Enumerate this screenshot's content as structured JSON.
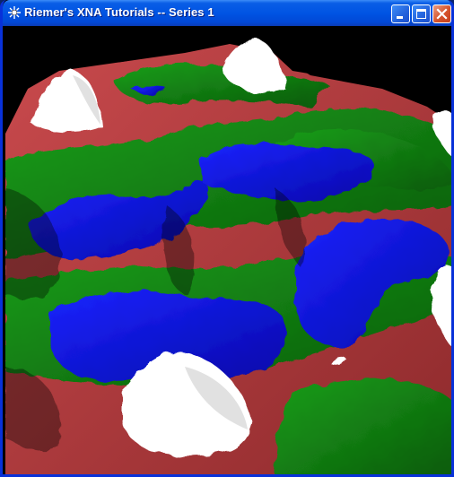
{
  "window": {
    "title": "Riemer's XNA Tutorials -- Series 1",
    "buttons": {
      "minimize": "minimize",
      "maximize": "maximize",
      "close": "close"
    }
  },
  "scene": {
    "description_colors": {
      "background": "#000000",
      "snow": "#ffffff",
      "rock": "#b0393c",
      "grass": "#138c13",
      "water": "#0a12e6"
    }
  }
}
